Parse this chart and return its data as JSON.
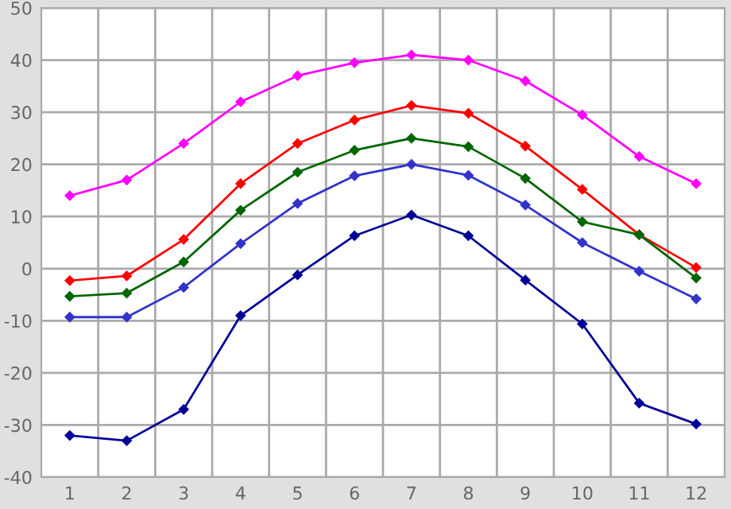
{
  "chart_data": {
    "type": "line",
    "categories": [
      "1",
      "2",
      "3",
      "4",
      "5",
      "6",
      "7",
      "8",
      "9",
      "10",
      "11",
      "12"
    ],
    "series": [
      {
        "color": "#ff00ff",
        "values": [
          14,
          17,
          24,
          32,
          37,
          39.5,
          41,
          40,
          36,
          29.5,
          21.5,
          16.3
        ]
      },
      {
        "color": "#ff0000",
        "values": [
          -2.3,
          -1.4,
          5.6,
          16.3,
          24,
          28.5,
          31.3,
          29.8,
          23.5,
          15.2,
          6.5,
          0.2
        ]
      },
      {
        "color": "#006600",
        "values": [
          -5.3,
          -4.7,
          1.3,
          11.2,
          18.5,
          22.7,
          25,
          23.4,
          17.3,
          9,
          6.5,
          -1.8
        ]
      },
      {
        "color": "#3333cc",
        "values": [
          -9.3,
          -9.3,
          -3.6,
          4.8,
          12.5,
          17.8,
          20,
          17.9,
          12.2,
          5,
          -0.5,
          -5.8
        ]
      },
      {
        "color": "#000099",
        "values": [
          -32,
          -33,
          -27,
          -9,
          -1.2,
          6.3,
          10.3,
          6.3,
          -2.2,
          -10.6,
          -25.8,
          -29.8
        ]
      }
    ],
    "ylim": [
      -40,
      50
    ],
    "yticks": [
      -40,
      -30,
      -20,
      -10,
      0,
      10,
      20,
      30,
      40,
      50
    ],
    "grid": true,
    "marker": "diamond",
    "line_style": "solid"
  }
}
